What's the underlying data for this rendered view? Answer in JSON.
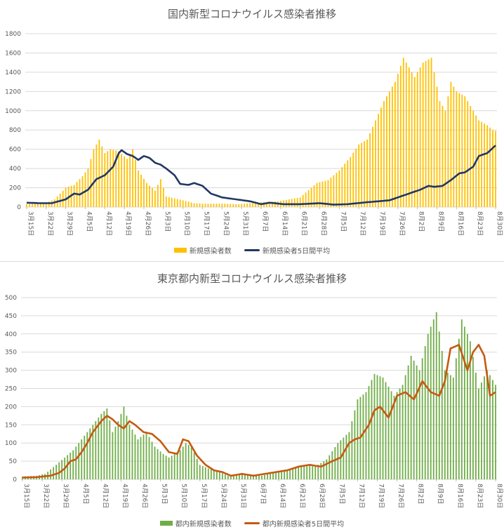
{
  "chart_data": [
    {
      "type": "bar",
      "title": "国内新型コロナウイルス感染者推移",
      "ylim": [
        0,
        1800
      ],
      "yticks": [
        0,
        200,
        400,
        600,
        800,
        1000,
        1200,
        1400,
        1600,
        1800
      ],
      "grid": true,
      "legend_position": "bottom",
      "x_start": "3月15日",
      "x_end": "8月30日",
      "x_tick_labels": [
        "3月15日",
        "3月22日",
        "3月29日",
        "4月5日",
        "4月12日",
        "4月19日",
        "4月26日",
        "5月3日",
        "5月10日",
        "5月17日",
        "5月24日",
        "5月31日",
        "6月7日",
        "6月14日",
        "6月21日",
        "6月28日",
        "7月5日",
        "7月12日",
        "7月19日",
        "7月26日",
        "8月2日",
        "8月9日",
        "8月16日",
        "8月23日",
        "8月30日"
      ],
      "bar_color": "#FFC000",
      "line_color": "#203864",
      "series": [
        {
          "name": "新規感染者数",
          "kind": "bar",
          "keyframes": [
            [
              0,
              30
            ],
            [
              7,
              45
            ],
            [
              10,
              80
            ],
            [
              14,
              200
            ],
            [
              17,
              230
            ],
            [
              20,
              320
            ],
            [
              22,
              400
            ],
            [
              24,
              600
            ],
            [
              26,
              700
            ],
            [
              28,
              560
            ],
            [
              30,
              600
            ],
            [
              33,
              580
            ],
            [
              36,
              500
            ],
            [
              38,
              600
            ],
            [
              40,
              380
            ],
            [
              43,
              250
            ],
            [
              46,
              170
            ],
            [
              48,
              290
            ],
            [
              50,
              110
            ],
            [
              53,
              90
            ],
            [
              56,
              70
            ],
            [
              60,
              40
            ],
            [
              63,
              35
            ],
            [
              70,
              35
            ],
            [
              76,
              30
            ],
            [
              84,
              50
            ],
            [
              90,
              60
            ],
            [
              98,
              100
            ],
            [
              104,
              250
            ],
            [
              108,
              280
            ],
            [
              112,
              380
            ],
            [
              116,
              520
            ],
            [
              119,
              650
            ],
            [
              122,
              700
            ],
            [
              125,
              900
            ],
            [
              128,
              1100
            ],
            [
              132,
              1300
            ],
            [
              135,
              1550
            ],
            [
              137,
              1450
            ],
            [
              139,
              1350
            ],
            [
              142,
              1500
            ],
            [
              145,
              1550
            ],
            [
              148,
              1100
            ],
            [
              150,
              1000
            ],
            [
              152,
              1300
            ],
            [
              154,
              1200
            ],
            [
              157,
              1150
            ],
            [
              159,
              1050
            ],
            [
              162,
              900
            ],
            [
              165,
              850
            ],
            [
              167,
              800
            ],
            [
              169,
              780
            ],
            [
              171,
              650
            ],
            [
              172,
              450
            ]
          ]
        },
        {
          "name": "新規感染者5日間平均",
          "kind": "line",
          "keyframes": [
            [
              0,
              45
            ],
            [
              5,
              40
            ],
            [
              9,
              40
            ],
            [
              14,
              80
            ],
            [
              17,
              140
            ],
            [
              19,
              130
            ],
            [
              22,
              180
            ],
            [
              25,
              290
            ],
            [
              28,
              330
            ],
            [
              31,
              420
            ],
            [
              33,
              560
            ],
            [
              34,
              590
            ],
            [
              36,
              550
            ],
            [
              38,
              530
            ],
            [
              40,
              490
            ],
            [
              42,
              530
            ],
            [
              44,
              510
            ],
            [
              46,
              460
            ],
            [
              48,
              440
            ],
            [
              50,
              400
            ],
            [
              53,
              330
            ],
            [
              55,
              240
            ],
            [
              58,
              230
            ],
            [
              60,
              250
            ],
            [
              63,
              220
            ],
            [
              66,
              140
            ],
            [
              70,
              100
            ],
            [
              75,
              80
            ],
            [
              80,
              60
            ],
            [
              84,
              30
            ],
            [
              87,
              45
            ],
            [
              92,
              30
            ],
            [
              98,
              30
            ],
            [
              105,
              40
            ],
            [
              110,
              25
            ],
            [
              115,
              30
            ],
            [
              122,
              50
            ],
            [
              126,
              60
            ],
            [
              130,
              70
            ],
            [
              132,
              90
            ],
            [
              135,
              120
            ],
            [
              138,
              150
            ],
            [
              141,
              180
            ],
            [
              144,
              220
            ],
            [
              146,
              210
            ],
            [
              149,
              220
            ],
            [
              152,
              280
            ],
            [
              155,
              350
            ],
            [
              157,
              360
            ],
            [
              160,
              420
            ],
            [
              162,
              530
            ],
            [
              165,
              560
            ],
            [
              168,
              640
            ],
            [
              171,
              770
            ],
            [
              172,
              830
            ]
          ]
        }
      ]
    },
    {
      "type": "bar",
      "title": "東京都内新型コロナウイルス感染者推移",
      "ylim": [
        0,
        500
      ],
      "yticks": [
        0,
        50,
        100,
        150,
        200,
        250,
        300,
        350,
        400,
        450,
        500
      ],
      "grid": true,
      "legend_position": "bottom",
      "x_start": "3月15日",
      "x_end": "8月30日",
      "x_tick_labels": [
        "3月15日",
        "3月22日",
        "3月29日",
        "4月5日",
        "4月12日",
        "4月19日",
        "4月26日",
        "5月3日",
        "5月10日",
        "5月17日",
        "5月24日",
        "5月31日",
        "6月7日",
        "6月14日",
        "6月21日",
        "6月28日",
        "7月5日",
        "7月12日",
        "7月19日",
        "7月26日",
        "8月2日",
        "8月9日",
        "8月16日",
        "8月23日",
        "8月30日"
      ],
      "bar_color": "#70AD47",
      "line_color": "#C55A11",
      "series": [
        {
          "name": "都内新規感染者数",
          "kind": "bar",
          "keyframes": [
            [
              0,
              8
            ],
            [
              5,
              10
            ],
            [
              8,
              15
            ],
            [
              12,
              40
            ],
            [
              15,
              60
            ],
            [
              18,
              80
            ],
            [
              20,
              100
            ],
            [
              24,
              140
            ],
            [
              28,
              180
            ],
            [
              30,
              195
            ],
            [
              32,
              130
            ],
            [
              34,
              160
            ],
            [
              36,
              200
            ],
            [
              38,
              150
            ],
            [
              41,
              110
            ],
            [
              44,
              130
            ],
            [
              47,
              90
            ],
            [
              50,
              70
            ],
            [
              52,
              60
            ],
            [
              56,
              80
            ],
            [
              58,
              100
            ],
            [
              60,
              90
            ],
            [
              63,
              40
            ],
            [
              66,
              30
            ],
            [
              70,
              20
            ],
            [
              73,
              10
            ],
            [
              77,
              15
            ],
            [
              80,
              15
            ],
            [
              85,
              10
            ],
            [
              90,
              20
            ],
            [
              95,
              25
            ],
            [
              100,
              40
            ],
            [
              104,
              35
            ],
            [
              108,
              55
            ],
            [
              112,
              100
            ],
            [
              116,
              130
            ],
            [
              119,
              220
            ],
            [
              122,
              240
            ],
            [
              125,
              290
            ],
            [
              128,
              280
            ],
            [
              132,
              230
            ],
            [
              135,
              260
            ],
            [
              138,
              340
            ],
            [
              141,
              300
            ],
            [
              144,
              400
            ],
            [
              147,
              460
            ],
            [
              150,
              300
            ],
            [
              153,
              280
            ],
            [
              156,
              440
            ],
            [
              159,
              380
            ],
            [
              162,
              250
            ],
            [
              165,
              300
            ],
            [
              168,
              260
            ],
            [
              171,
              220
            ],
            [
              172,
              100
            ]
          ]
        },
        {
          "name": "都内新規感染者5日間平均",
          "kind": "line",
          "keyframes": [
            [
              0,
              5
            ],
            [
              5,
              6
            ],
            [
              10,
              10
            ],
            [
              13,
              18
            ],
            [
              15,
              30
            ],
            [
              17,
              50
            ],
            [
              19,
              55
            ],
            [
              21,
              75
            ],
            [
              23,
              100
            ],
            [
              25,
              130
            ],
            [
              28,
              160
            ],
            [
              30,
              175
            ],
            [
              32,
              165
            ],
            [
              34,
              150
            ],
            [
              36,
              140
            ],
            [
              38,
              160
            ],
            [
              40,
              150
            ],
            [
              43,
              130
            ],
            [
              46,
              125
            ],
            [
              49,
              105
            ],
            [
              52,
              75
            ],
            [
              55,
              70
            ],
            [
              57,
              110
            ],
            [
              59,
              105
            ],
            [
              62,
              65
            ],
            [
              65,
              40
            ],
            [
              68,
              25
            ],
            [
              71,
              20
            ],
            [
              74,
              10
            ],
            [
              78,
              15
            ],
            [
              82,
              10
            ],
            [
              86,
              15
            ],
            [
              90,
              20
            ],
            [
              94,
              25
            ],
            [
              98,
              35
            ],
            [
              102,
              40
            ],
            [
              106,
              35
            ],
            [
              110,
              50
            ],
            [
              113,
              60
            ],
            [
              116,
              100
            ],
            [
              118,
              110
            ],
            [
              120,
              115
            ],
            [
              123,
              150
            ],
            [
              125,
              190
            ],
            [
              127,
              200
            ],
            [
              130,
              170
            ],
            [
              133,
              230
            ],
            [
              136,
              240
            ],
            [
              139,
              220
            ],
            [
              142,
              270
            ],
            [
              145,
              240
            ],
            [
              148,
              230
            ],
            [
              150,
              270
            ],
            [
              152,
              360
            ],
            [
              155,
              370
            ],
            [
              158,
              300
            ],
            [
              160,
              350
            ],
            [
              162,
              370
            ],
            [
              164,
              340
            ],
            [
              166,
              230
            ],
            [
              168,
              240
            ],
            [
              170,
              275
            ],
            [
              172,
              200
            ]
          ]
        }
      ]
    }
  ]
}
